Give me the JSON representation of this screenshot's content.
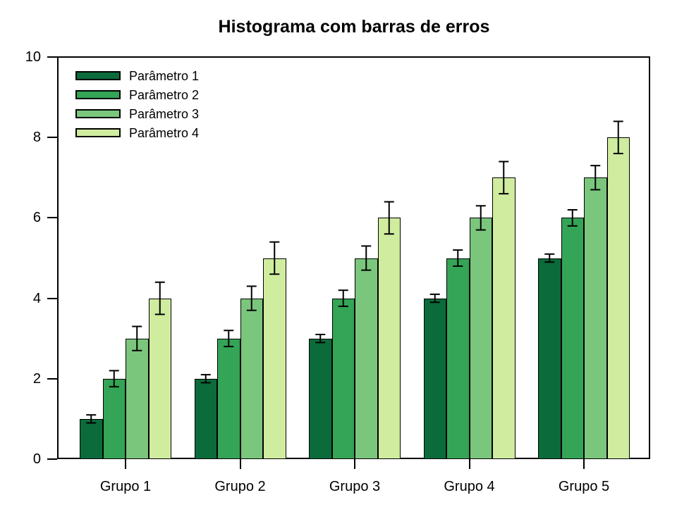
{
  "figure": {
    "background": "#ffffff",
    "text_color": "#000000",
    "axis_color": "#000000"
  },
  "chart_data": {
    "type": "bar",
    "title": "Histograma com barras de erros",
    "categories": [
      "Grupo 1",
      "Grupo 2",
      "Grupo 3",
      "Grupo 4",
      "Grupo 5"
    ],
    "series": [
      {
        "name": "Parâmetro 1",
        "color": "#0b6b3b",
        "values": [
          1,
          2,
          3,
          4,
          5
        ],
        "errors": [
          0.1,
          0.1,
          0.1,
          0.1,
          0.1
        ]
      },
      {
        "name": "Parâmetro 2",
        "color": "#34a456",
        "values": [
          2,
          3,
          4,
          5,
          6
        ],
        "errors": [
          0.2,
          0.2,
          0.2,
          0.2,
          0.2
        ]
      },
      {
        "name": "Parâmetro 3",
        "color": "#7bc67d",
        "values": [
          3,
          4,
          5,
          6,
          7
        ],
        "errors": [
          0.3,
          0.3,
          0.3,
          0.3,
          0.3
        ]
      },
      {
        "name": "Parâmetro 4",
        "color": "#cfec9f",
        "values": [
          4,
          5,
          6,
          7,
          8
        ],
        "errors": [
          0.4,
          0.4,
          0.4,
          0.4,
          0.4
        ]
      }
    ],
    "xlabel": "",
    "ylabel": "",
    "ylim": [
      0,
      10
    ],
    "yticks": [
      0,
      2,
      4,
      6,
      8,
      10
    ],
    "grid": false,
    "legend_position": "top-left",
    "error_bars": true,
    "bar_edge_color": "#000000",
    "error_bar_color": "#000000"
  }
}
